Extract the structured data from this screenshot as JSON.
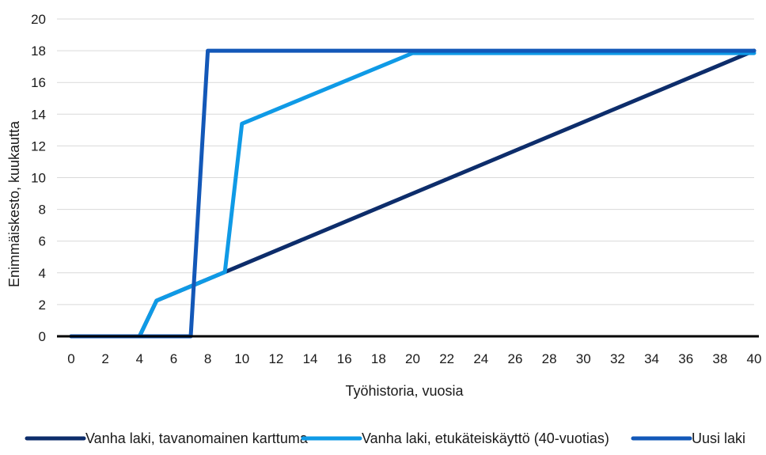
{
  "chart_data": {
    "type": "line",
    "title": "",
    "xlabel": "Työhistoria, vuosia",
    "ylabel": "Enimmäiskesto, kuukautta",
    "xlim": [
      0,
      40
    ],
    "ylim": [
      0,
      20
    ],
    "x_ticks": [
      "0",
      "2",
      "4",
      "6",
      "8",
      "10",
      "12",
      "14",
      "16",
      "18",
      "20",
      "22",
      "24",
      "26",
      "28",
      "30",
      "32",
      "34",
      "36",
      "38",
      "40"
    ],
    "y_ticks": [
      "0",
      "2",
      "4",
      "6",
      "8",
      "10",
      "12",
      "14",
      "16",
      "18",
      "20"
    ],
    "grid": "horizontal",
    "legend_position": "bottom",
    "series": [
      {
        "name": "Vanha laki, tavanomainen karttuma",
        "color": "#0d2d6b",
        "points": [
          [
            0,
            0
          ],
          [
            4,
            0
          ],
          [
            5,
            2.25
          ],
          [
            40,
            18
          ]
        ]
      },
      {
        "name": "Vanha laki, etukäteiskäyttö (40-vuotias)",
        "color": "#0f9ae6",
        "points": [
          [
            0,
            0
          ],
          [
            4,
            0
          ],
          [
            5,
            2.25
          ],
          [
            9,
            4.05
          ],
          [
            10,
            13.4
          ],
          [
            20,
            17.85
          ],
          [
            40,
            17.85
          ]
        ]
      },
      {
        "name": "Uusi laki",
        "color": "#1358b8",
        "points": [
          [
            0,
            0
          ],
          [
            7,
            0
          ],
          [
            8,
            18
          ],
          [
            40,
            18
          ]
        ]
      }
    ]
  }
}
